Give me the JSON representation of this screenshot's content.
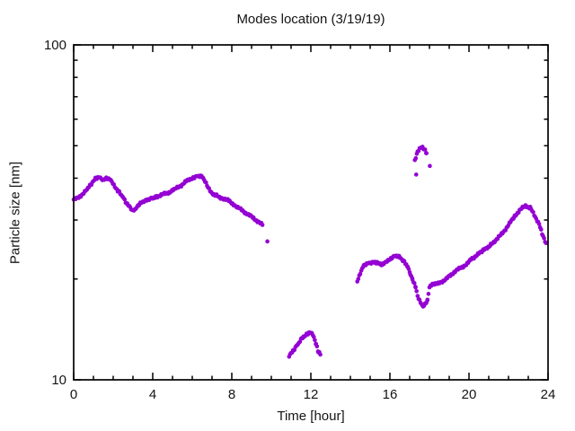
{
  "chart_data": {
    "type": "scatter",
    "title": "Modes location (3/19/19)",
    "xlabel": "Time [hour]",
    "ylabel": "Particle size [nm]",
    "xlim": [
      0,
      24
    ],
    "ylim": [
      10,
      100
    ],
    "yscale": "log",
    "grid": false,
    "legend": "none",
    "x_ticks": {
      "major": [
        0,
        4,
        8,
        12,
        16,
        20,
        24
      ],
      "minor_step_hours": 1
    },
    "y_ticks": {
      "major": [
        10,
        100
      ],
      "minor": [
        20,
        30,
        40,
        50,
        60,
        70,
        80,
        90
      ]
    },
    "marker": "filled-circle",
    "marker_color": "#9400D3",
    "axis_color": "#000000",
    "background_color": "#FFFFFF",
    "sample_step_hours": 0.05,
    "series": [
      {
        "name": "mode-diameter",
        "segments": [
          [
            [
              0.0,
              34.4
            ],
            [
              0.36,
              35.5
            ],
            [
              0.67,
              36.9
            ],
            [
              0.9,
              38.5
            ],
            [
              1.12,
              39.9
            ],
            [
              1.35,
              40.2
            ],
            [
              1.5,
              39.4
            ],
            [
              1.68,
              40.0
            ],
            [
              1.83,
              39.7
            ],
            [
              2.03,
              38.1
            ],
            [
              2.26,
              36.6
            ],
            [
              2.48,
              35.2
            ],
            [
              2.71,
              33.4
            ],
            [
              2.95,
              32.2
            ],
            [
              3.1,
              32.1
            ],
            [
              3.32,
              33.4
            ],
            [
              3.55,
              34.1
            ],
            [
              3.77,
              34.4
            ],
            [
              4.0,
              34.9
            ],
            [
              4.23,
              35.3
            ],
            [
              4.53,
              35.8
            ],
            [
              4.83,
              36.3
            ],
            [
              5.14,
              37.1
            ],
            [
              5.44,
              38.1
            ],
            [
              5.74,
              39.3
            ],
            [
              6.05,
              40.2
            ],
            [
              6.27,
              40.7
            ],
            [
              6.5,
              40.5
            ],
            [
              6.65,
              39.3
            ],
            [
              6.8,
              37.4
            ],
            [
              6.95,
              36.2
            ],
            [
              7.18,
              35.6
            ],
            [
              7.49,
              34.9
            ],
            [
              7.79,
              34.4
            ],
            [
              8.1,
              33.4
            ],
            [
              8.5,
              32.1
            ],
            [
              9.1,
              30.4
            ],
            [
              9.55,
              29.0
            ]
          ],
          [
            [
              10.9,
              11.8
            ],
            [
              11.12,
              12.2
            ],
            [
              11.35,
              12.8
            ],
            [
              11.58,
              13.4
            ],
            [
              11.8,
              13.7
            ],
            [
              11.95,
              13.9
            ],
            [
              12.1,
              13.6
            ],
            [
              12.26,
              12.8
            ],
            [
              12.38,
              12.1
            ],
            [
              12.48,
              11.9
            ]
          ],
          [
            [
              14.35,
              19.7
            ],
            [
              14.5,
              20.9
            ],
            [
              14.6,
              21.5
            ],
            [
              14.68,
              22.0
            ],
            [
              14.9,
              22.4
            ],
            [
              15.14,
              22.4
            ],
            [
              15.36,
              22.3
            ],
            [
              15.6,
              22.1
            ],
            [
              15.8,
              22.4
            ],
            [
              16.05,
              23.1
            ],
            [
              16.27,
              23.5
            ],
            [
              16.5,
              23.3
            ],
            [
              16.73,
              22.5
            ],
            [
              16.9,
              21.8
            ],
            [
              17.03,
              20.7
            ],
            [
              17.14,
              19.9
            ],
            [
              17.3,
              18.9
            ],
            [
              17.4,
              17.7
            ],
            [
              17.56,
              17.0
            ],
            [
              17.68,
              16.5
            ],
            [
              17.79,
              16.8
            ],
            [
              17.9,
              17.2
            ],
            [
              18.0,
              18.9
            ],
            [
              18.15,
              19.4
            ],
            [
              18.4,
              19.3
            ],
            [
              18.85,
              20.0
            ],
            [
              19.3,
              21.1
            ],
            [
              19.76,
              21.9
            ],
            [
              20.2,
              23.1
            ],
            [
              20.67,
              24.2
            ],
            [
              21.1,
              25.3
            ],
            [
              21.6,
              27.0
            ],
            [
              21.95,
              28.7
            ],
            [
              22.26,
              30.5
            ],
            [
              22.56,
              32.1
            ],
            [
              22.86,
              33.1
            ],
            [
              23.1,
              32.6
            ],
            [
              23.3,
              31.1
            ],
            [
              23.55,
              29.2
            ],
            [
              23.7,
              27.2
            ],
            [
              23.9,
              25.6
            ]
          ],
          [
            [
              17.26,
              45.3
            ],
            [
              17.4,
              47.8
            ],
            [
              17.55,
              49.5
            ],
            [
              17.65,
              49.6
            ],
            [
              17.78,
              48.4
            ],
            [
              17.85,
              47.5
            ]
          ]
        ],
        "isolated_points": [
          [
            9.8,
            25.9
          ],
          [
            17.33,
            41.0
          ],
          [
            18.02,
            43.5
          ]
        ]
      }
    ]
  }
}
